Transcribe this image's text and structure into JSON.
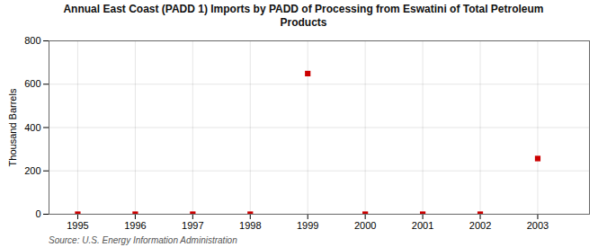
{
  "chart_data": {
    "type": "scatter",
    "title": "Annual East Coast (PADD 1) Imports by PADD of Processing from Eswatini of Total Petroleum\nProducts",
    "ylabel": "Thousand Barrels",
    "annotations": [
      "Source: U.S. Energy Information Administration"
    ],
    "x": [
      1995,
      1996,
      1997,
      1998,
      1999,
      2000,
      2001,
      2002,
      2003
    ],
    "values": [
      0,
      0,
      0,
      0,
      649,
      0,
      0,
      0,
      257
    ],
    "color": "#cc0000",
    "marker": "square",
    "xlim": [
      1994.5,
      2003.9
    ],
    "xticks": [
      1995,
      1996,
      1997,
      1998,
      1999,
      2000,
      2001,
      2002,
      2003
    ],
    "ylim": [
      0,
      800
    ],
    "yticks": [
      0,
      200,
      400,
      600,
      800
    ],
    "grid": true
  }
}
